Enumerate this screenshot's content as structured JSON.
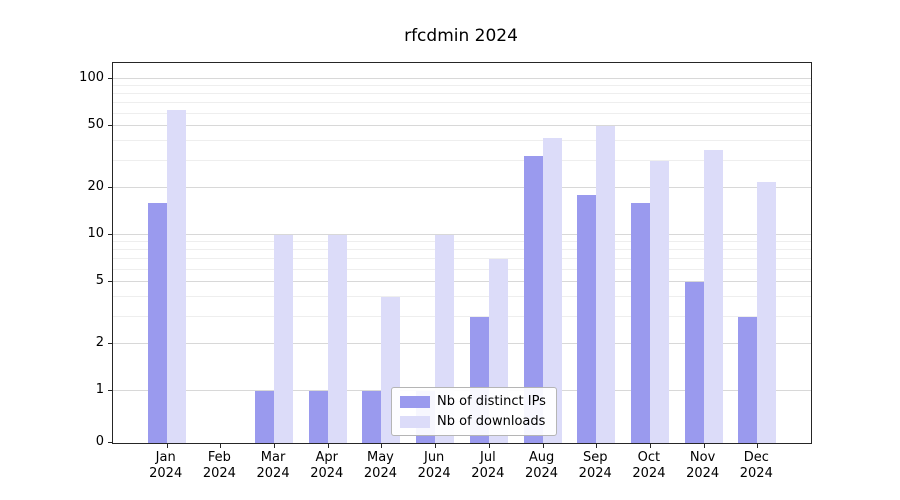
{
  "chart_data": {
    "type": "bar",
    "title": "rfcdmin 2024",
    "yscale": "log",
    "grid": true,
    "legend_position": "bottom-center",
    "yticks": [
      0,
      1,
      2,
      5,
      10,
      20,
      50,
      100
    ],
    "minor_yticks": [
      3,
      4,
      6,
      7,
      8,
      9,
      30,
      40,
      60,
      70,
      80,
      90
    ],
    "ylim": [
      0,
      127
    ],
    "categories": [
      [
        "Jan",
        "2024"
      ],
      [
        "Feb",
        "2024"
      ],
      [
        "Mar",
        "2024"
      ],
      [
        "Apr",
        "2024"
      ],
      [
        "May",
        "2024"
      ],
      [
        "Jun",
        "2024"
      ],
      [
        "Jul",
        "2024"
      ],
      [
        "Aug",
        "2024"
      ],
      [
        "Sep",
        "2024"
      ],
      [
        "Oct",
        "2024"
      ],
      [
        "Nov",
        "2024"
      ],
      [
        "Dec",
        "2024"
      ]
    ],
    "series": [
      {
        "name": "Nb of distinct IPs",
        "color": "#9a9aee",
        "values": [
          16,
          0,
          1,
          1,
          1,
          1,
          3,
          32,
          18,
          16,
          5,
          3
        ]
      },
      {
        "name": "Nb of downloads",
        "color": "#dcdcf9",
        "values": [
          63,
          0,
          10,
          10,
          4,
          10,
          7,
          42,
          50,
          30,
          35,
          22
        ]
      }
    ]
  }
}
